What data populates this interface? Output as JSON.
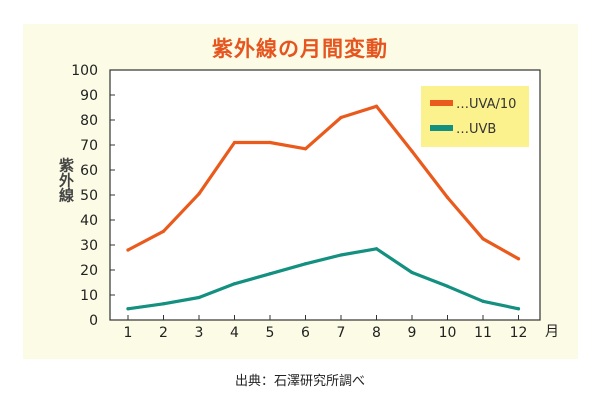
{
  "chart_data": {
    "type": "line",
    "title": "紫外線の月間変動",
    "ylabel": "紫外線",
    "xlabel": "月",
    "categories": [
      "1",
      "2",
      "3",
      "4",
      "5",
      "6",
      "7",
      "8",
      "9",
      "10",
      "11",
      "12"
    ],
    "yticks": [
      "0",
      "10",
      "20",
      "30",
      "40",
      "50",
      "60",
      "70",
      "80",
      "90",
      "100"
    ],
    "ylim": [
      0,
      100
    ],
    "series": [
      {
        "name": "UVA/10",
        "legend_label": "…UVA/10",
        "color": "#ea5a1c",
        "values": [
          28,
          35.5,
          50.5,
          71,
          71,
          68.5,
          81,
          85.5,
          67.5,
          49,
          32.5,
          24.5
        ]
      },
      {
        "name": "UVB",
        "legend_label": "…UVB",
        "color": "#13907f",
        "values": [
          4.5,
          6.5,
          9,
          14.5,
          18.5,
          22.5,
          26,
          28.5,
          19,
          13.5,
          7.5,
          4.5
        ]
      }
    ],
    "legend_position": "top-right",
    "grid": false
  },
  "source": "出典：石澤研究所調べ",
  "colors": {
    "panel_bg": "#fcfce6",
    "plot_bg": "#ffffff",
    "legend_bg": "#fbf28e",
    "title": "#e6551f"
  }
}
